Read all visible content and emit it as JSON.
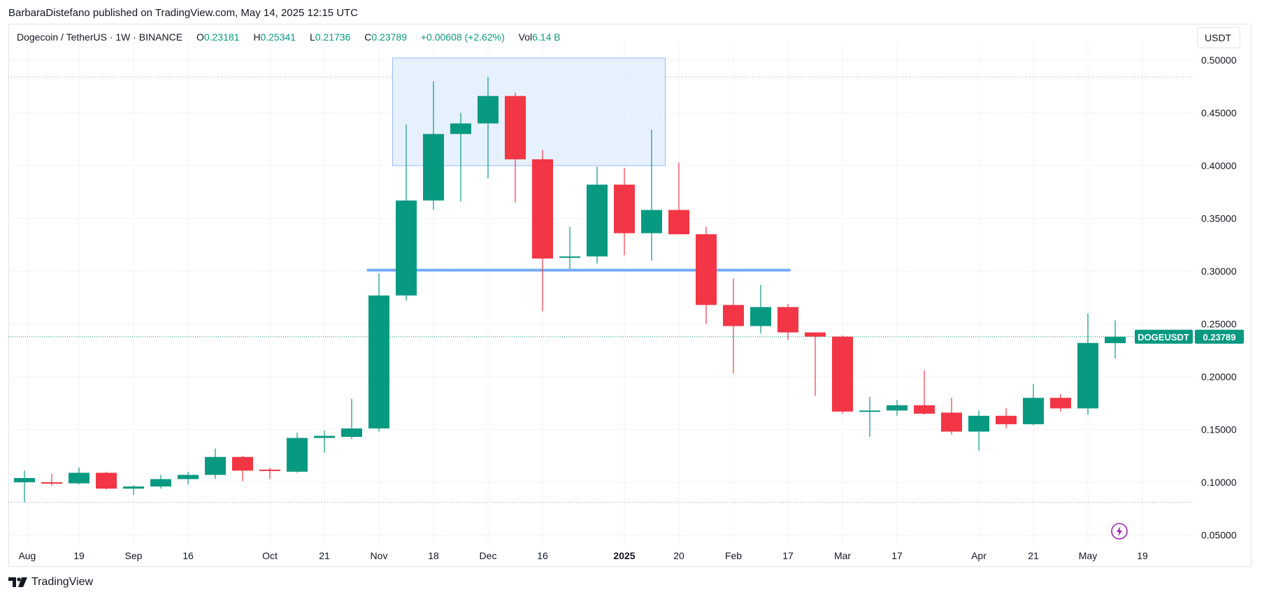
{
  "header": {
    "published": "BarbaraDistefano published on TradingView.com, May 14, 2025 12:15 UTC"
  },
  "legend": {
    "symbol": "Dogecoin / TetherUS · 1W · BINANCE",
    "o_label": "O",
    "o_value": "0.23181",
    "h_label": "H",
    "h_value": "0.25341",
    "l_label": "L",
    "l_value": "0.21736",
    "c_label": "C",
    "c_value": "0.23789",
    "change": "+0.00608 (+2.62%)",
    "vol_label": "Vol",
    "vol_value": "6.14 B"
  },
  "currency": "USDT",
  "footer": {
    "brand": "TradingView"
  },
  "icons": {
    "bolt": "lightning-bolt-icon",
    "logo": "tradingview-logo-icon"
  },
  "colors": {
    "up": "#089981",
    "down": "#f23645",
    "grid": "#f0f3fa",
    "accent": "#5b9cf6",
    "box_fill": "#e3eefd",
    "box_stroke": "#90bff9",
    "bolt": "#9c27b0"
  },
  "chart_data": {
    "type": "candlestick",
    "interval": "1W",
    "ylim": [
      0.028,
      0.527
    ],
    "y_ticks": [
      "0.50000",
      "0.45000",
      "0.40000",
      "0.35000",
      "0.30000",
      "0.25000",
      "0.20000",
      "0.15000",
      "0.10000",
      "0.05000"
    ],
    "x_labels": [
      {
        "label": "Aug",
        "index": 0.1
      },
      {
        "label": "19",
        "index": 2
      },
      {
        "label": "Sep",
        "index": 4
      },
      {
        "label": "16",
        "index": 6
      },
      {
        "label": "Oct",
        "index": 9
      },
      {
        "label": "21",
        "index": 11
      },
      {
        "label": "Nov",
        "index": 13
      },
      {
        "label": "18",
        "index": 15
      },
      {
        "label": "Dec",
        "index": 17
      },
      {
        "label": "16",
        "index": 19
      },
      {
        "label": "2025",
        "index": 22,
        "bold": true
      },
      {
        "label": "20",
        "index": 24
      },
      {
        "label": "Feb",
        "index": 26
      },
      {
        "label": "17",
        "index": 28
      },
      {
        "label": "Mar",
        "index": 30
      },
      {
        "label": "17",
        "index": 32
      },
      {
        "label": "Apr",
        "index": 35
      },
      {
        "label": "21",
        "index": 37
      },
      {
        "label": "May",
        "index": 39
      },
      {
        "label": "19",
        "index": 41
      }
    ],
    "candles": [
      {
        "o": 0.1,
        "h": 0.111,
        "l": 0.081,
        "c": 0.104
      },
      {
        "o": 0.1,
        "h": 0.108,
        "l": 0.097,
        "c": 0.099
      },
      {
        "o": 0.099,
        "h": 0.114,
        "l": 0.098,
        "c": 0.109
      },
      {
        "o": 0.109,
        "h": 0.11,
        "l": 0.093,
        "c": 0.094
      },
      {
        "o": 0.094,
        "h": 0.097,
        "l": 0.088,
        "c": 0.096
      },
      {
        "o": 0.096,
        "h": 0.107,
        "l": 0.094,
        "c": 0.103
      },
      {
        "o": 0.103,
        "h": 0.11,
        "l": 0.098,
        "c": 0.107
      },
      {
        "o": 0.107,
        "h": 0.132,
        "l": 0.103,
        "c": 0.124
      },
      {
        "o": 0.124,
        "h": 0.125,
        "l": 0.101,
        "c": 0.111
      },
      {
        "o": 0.112,
        "h": 0.114,
        "l": 0.103,
        "c": 0.111
      },
      {
        "o": 0.11,
        "h": 0.147,
        "l": 0.109,
        "c": 0.142
      },
      {
        "o": 0.142,
        "h": 0.149,
        "l": 0.128,
        "c": 0.144
      },
      {
        "o": 0.143,
        "h": 0.179,
        "l": 0.141,
        "c": 0.151
      },
      {
        "o": 0.151,
        "h": 0.298,
        "l": 0.148,
        "c": 0.277
      },
      {
        "o": 0.277,
        "h": 0.439,
        "l": 0.272,
        "c": 0.367
      },
      {
        "o": 0.367,
        "h": 0.48,
        "l": 0.358,
        "c": 0.43
      },
      {
        "o": 0.43,
        "h": 0.45,
        "l": 0.366,
        "c": 0.44
      },
      {
        "o": 0.44,
        "h": 0.484,
        "l": 0.388,
        "c": 0.466
      },
      {
        "o": 0.466,
        "h": 0.469,
        "l": 0.365,
        "c": 0.406
      },
      {
        "o": 0.406,
        "h": 0.415,
        "l": 0.262,
        "c": 0.312
      },
      {
        "o": 0.313,
        "h": 0.342,
        "l": 0.302,
        "c": 0.314
      },
      {
        "o": 0.314,
        "h": 0.399,
        "l": 0.307,
        "c": 0.382
      },
      {
        "o": 0.382,
        "h": 0.398,
        "l": 0.315,
        "c": 0.336
      },
      {
        "o": 0.336,
        "h": 0.434,
        "l": 0.31,
        "c": 0.358
      },
      {
        "o": 0.358,
        "h": 0.403,
        "l": 0.335,
        "c": 0.335
      },
      {
        "o": 0.335,
        "h": 0.342,
        "l": 0.25,
        "c": 0.268
      },
      {
        "o": 0.268,
        "h": 0.293,
        "l": 0.203,
        "c": 0.248
      },
      {
        "o": 0.248,
        "h": 0.287,
        "l": 0.241,
        "c": 0.266
      },
      {
        "o": 0.266,
        "h": 0.269,
        "l": 0.235,
        "c": 0.242
      },
      {
        "o": 0.242,
        "h": 0.242,
        "l": 0.182,
        "c": 0.238
      },
      {
        "o": 0.238,
        "h": 0.239,
        "l": 0.165,
        "c": 0.167
      },
      {
        "o": 0.167,
        "h": 0.181,
        "l": 0.143,
        "c": 0.168
      },
      {
        "o": 0.168,
        "h": 0.178,
        "l": 0.163,
        "c": 0.173
      },
      {
        "o": 0.173,
        "h": 0.206,
        "l": 0.164,
        "c": 0.165
      },
      {
        "o": 0.166,
        "h": 0.18,
        "l": 0.145,
        "c": 0.148
      },
      {
        "o": 0.148,
        "h": 0.168,
        "l": 0.13,
        "c": 0.163
      },
      {
        "o": 0.163,
        "h": 0.17,
        "l": 0.151,
        "c": 0.155
      },
      {
        "o": 0.155,
        "h": 0.193,
        "l": 0.154,
        "c": 0.18
      },
      {
        "o": 0.18,
        "h": 0.184,
        "l": 0.167,
        "c": 0.17
      },
      {
        "o": 0.17,
        "h": 0.26,
        "l": 0.164,
        "c": 0.232
      },
      {
        "o": 0.23181,
        "h": 0.25341,
        "l": 0.21736,
        "c": 0.23789
      }
    ],
    "price_label": {
      "symbol": "DOGEUSDT",
      "value": "0.23789",
      "price": 0.23789
    },
    "annotations": {
      "rectangle": {
        "x_start": 14,
        "x_end": 24,
        "y_top": 0.502,
        "y_bottom": 0.4
      },
      "support_line": {
        "x_start": 13,
        "x_end": 28,
        "y": 0.301
      },
      "dotted_levels": [
        0.484,
        0.081
      ]
    }
  }
}
